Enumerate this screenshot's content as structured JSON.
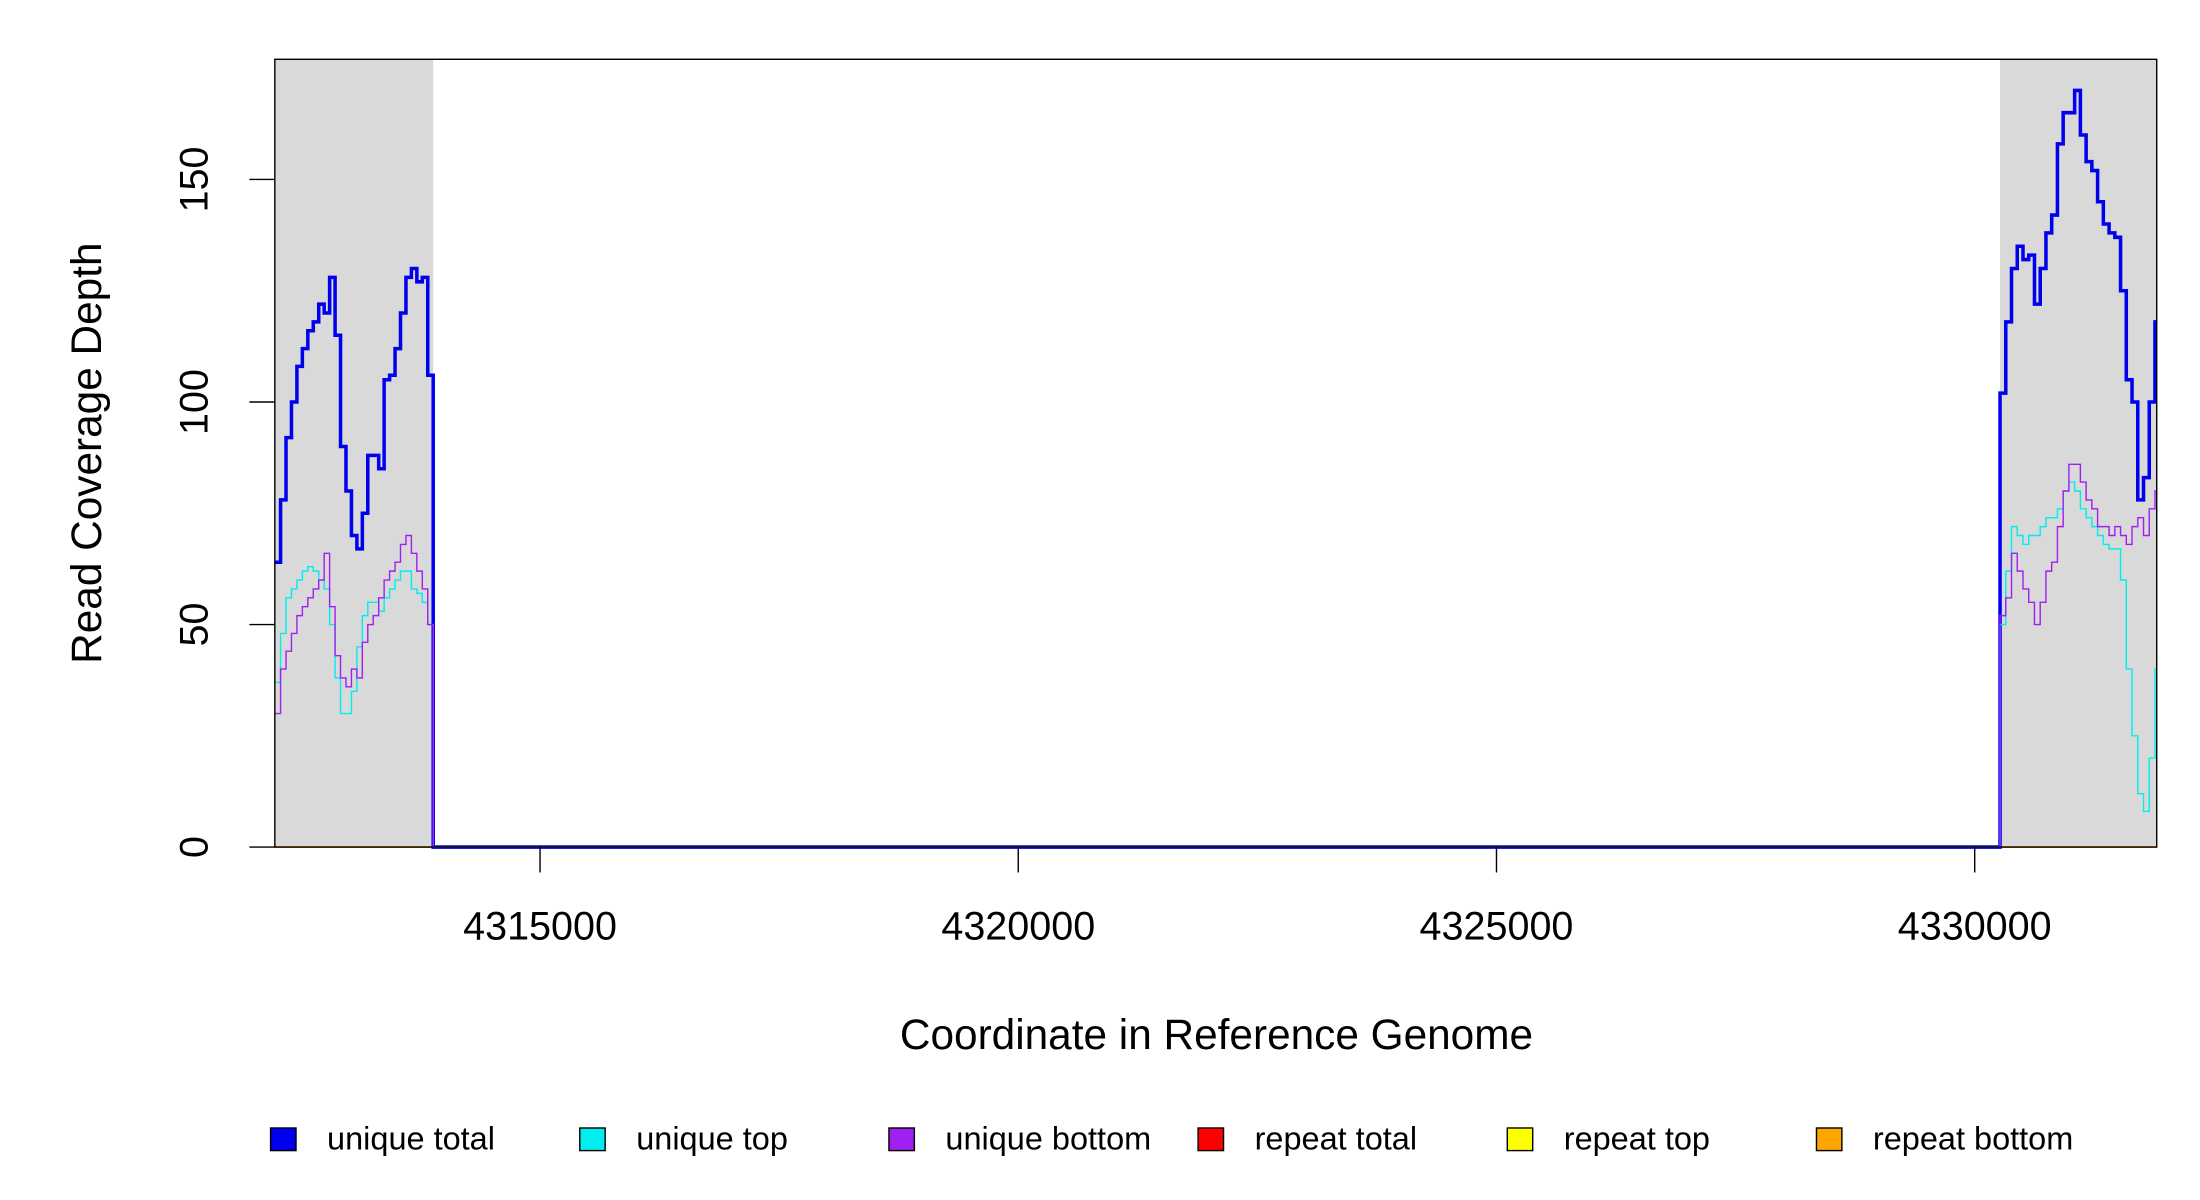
{
  "chart_data": {
    "type": "line",
    "step": true,
    "xlabel": "Coordinate in Reference Genome",
    "ylabel": "Read Coverage Depth",
    "xlim": [
      4312227,
      4331903
    ],
    "ylim": [
      0,
      177
    ],
    "xticks": [
      4315000,
      4320000,
      4325000,
      4330000
    ],
    "yticks": [
      0,
      50,
      100,
      150
    ],
    "shaded_regions": [
      [
        4312227,
        4313883
      ],
      [
        4330265,
        4331903
      ]
    ],
    "shade_color": "#d9d9d9",
    "legend": "bottom",
    "x": [
      4312230,
      4312287,
      4312344,
      4312401,
      4312458,
      4312515,
      4312572,
      4312629,
      4312686,
      4312743,
      4312800,
      4312857,
      4312914,
      4312971,
      4313028,
      4313085,
      4313142,
      4313199,
      4313256,
      4313313,
      4313370,
      4313427,
      4313484,
      4313541,
      4313598,
      4313655,
      4313712,
      4313769,
      4313826,
      4313883,
      4330200,
      4330265,
      4330325,
      4330385,
      4330445,
      4330505,
      4330565,
      4330625,
      4330685,
      4330745,
      4330805,
      4330865,
      4330925,
      4330985,
      4331045,
      4331105,
      4331165,
      4331225,
      4331285,
      4331345,
      4331405,
      4331465,
      4331525,
      4331585,
      4331645,
      4331705,
      4331765,
      4331825,
      4331885
    ],
    "series": [
      {
        "name": "repeat total",
        "color": "#ff0000",
        "width": 1,
        "values": [
          0,
          0,
          0,
          0,
          0,
          0,
          0,
          0,
          0,
          0,
          0,
          0,
          0,
          0,
          0,
          0,
          0,
          0,
          0,
          0,
          0,
          0,
          0,
          0,
          0,
          0,
          0,
          0,
          0,
          0,
          0,
          0,
          0,
          0,
          0,
          0,
          0,
          0,
          0,
          0,
          0,
          0,
          0,
          0,
          0,
          0,
          0,
          0,
          0,
          0,
          0,
          0,
          0,
          0,
          0,
          0,
          0,
          0,
          0
        ]
      },
      {
        "name": "repeat top",
        "color": "#ffff00",
        "width": 1,
        "values": [
          0,
          0,
          0,
          0,
          0,
          0,
          0,
          0,
          0,
          0,
          0,
          0,
          0,
          0,
          0,
          0,
          0,
          0,
          0,
          0,
          0,
          0,
          0,
          0,
          0,
          0,
          0,
          0,
          0,
          0,
          0,
          0,
          0,
          0,
          0,
          0,
          0,
          0,
          0,
          0,
          0,
          0,
          0,
          0,
          0,
          0,
          0,
          0,
          0,
          0,
          0,
          0,
          0,
          0,
          0,
          0,
          0,
          0,
          0
        ]
      },
      {
        "name": "repeat bottom",
        "color": "#ffa500",
        "width": 1,
        "values": [
          0,
          0,
          0,
          0,
          0,
          0,
          0,
          0,
          0,
          0,
          0,
          0,
          0,
          0,
          0,
          0,
          0,
          0,
          0,
          0,
          0,
          0,
          0,
          0,
          0,
          0,
          0,
          0,
          0,
          0,
          0,
          0,
          0,
          0,
          0,
          0,
          0,
          0,
          0,
          0,
          0,
          0,
          0,
          0,
          0,
          0,
          0,
          0,
          0,
          0,
          0,
          0,
          0,
          0,
          0,
          0,
          0,
          0,
          0
        ]
      },
      {
        "name": "unique total",
        "color": "#0000ee",
        "width": 2.5,
        "values": [
          64,
          78,
          92,
          100,
          108,
          112,
          116,
          118,
          122,
          120,
          128,
          115,
          90,
          80,
          70,
          67,
          75,
          88,
          88,
          85,
          105,
          106,
          112,
          120,
          128,
          130,
          127,
          128,
          106,
          0,
          0,
          102,
          118,
          130,
          135,
          132,
          133,
          122,
          130,
          138,
          142,
          158,
          165,
          165,
          170,
          160,
          154,
          152,
          145,
          140,
          138,
          137,
          125,
          105,
          100,
          78,
          83,
          100,
          118
        ]
      },
      {
        "name": "unique top",
        "color": "#00eeee",
        "width": 1,
        "values": [
          37,
          48,
          56,
          58,
          60,
          62,
          63,
          62,
          60,
          58,
          50,
          38,
          30,
          30,
          35,
          45,
          52,
          55,
          55,
          53,
          56,
          58,
          60,
          62,
          62,
          58,
          57,
          55,
          50,
          0,
          0,
          50,
          62,
          72,
          70,
          68,
          70,
          70,
          72,
          74,
          74,
          76,
          80,
          82,
          80,
          76,
          74,
          72,
          70,
          68,
          67,
          67,
          60,
          40,
          25,
          12,
          8,
          20,
          40
        ]
      },
      {
        "name": "unique bottom",
        "color": "#a020f0",
        "width": 1,
        "values": [
          30,
          40,
          44,
          48,
          52,
          54,
          56,
          58,
          60,
          66,
          54,
          43,
          38,
          36,
          40,
          38,
          46,
          50,
          52,
          56,
          60,
          62,
          64,
          68,
          70,
          66,
          62,
          58,
          50,
          0,
          0,
          52,
          56,
          66,
          62,
          58,
          55,
          50,
          55,
          62,
          64,
          72,
          80,
          86,
          86,
          82,
          78,
          76,
          72,
          72,
          70,
          72,
          70,
          68,
          72,
          74,
          70,
          76,
          80
        ]
      }
    ],
    "legend_order": [
      3,
      4,
      5,
      0,
      1,
      2
    ]
  }
}
